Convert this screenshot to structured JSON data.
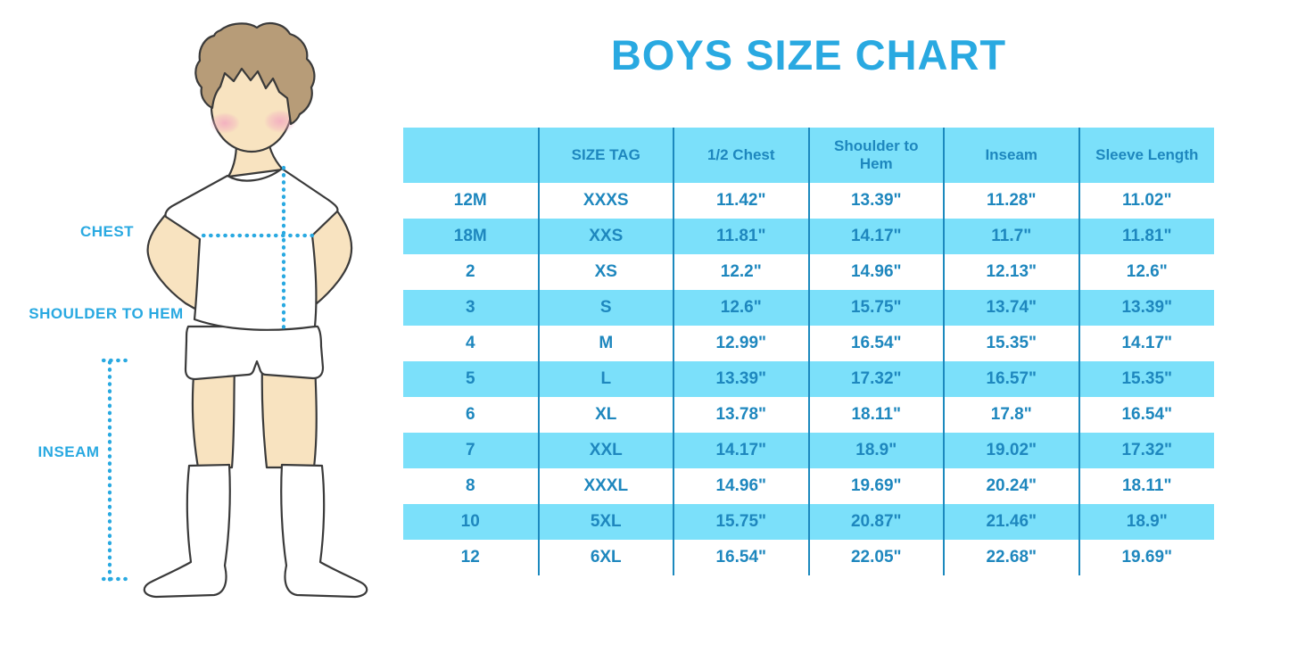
{
  "page": {
    "background": "#FFFFFF"
  },
  "colors": {
    "accent_blue": "#29A9E1",
    "stripe_blue": "#7BE0FA",
    "table_text_blue": "#1E87BE",
    "column_divider_blue": "#1C89BE"
  },
  "measurement_diagram": {
    "labels": {
      "chest": "CHEST",
      "shoulder_to_hem": "SHOULDER TO HEM",
      "inseam": "INSEAM"
    }
  },
  "chart_data": {
    "type": "table",
    "title": "BOYS SIZE CHART",
    "columns": [
      "",
      "SIZE TAG",
      "1/2 Chest",
      "Shoulder to Hem",
      "Inseam",
      "Sleeve Length"
    ],
    "rows": [
      [
        "12M",
        "XXXS",
        "11.42\"",
        "13.39\"",
        "11.28\"",
        "11.02\""
      ],
      [
        "18M",
        "XXS",
        "11.81\"",
        "14.17\"",
        "11.7\"",
        "11.81\""
      ],
      [
        "2",
        "XS",
        "12.2\"",
        "14.96\"",
        "12.13\"",
        "12.6\""
      ],
      [
        "3",
        "S",
        "12.6\"",
        "15.75\"",
        "13.74\"",
        "13.39\""
      ],
      [
        "4",
        "M",
        "12.99\"",
        "16.54\"",
        "15.35\"",
        "14.17\""
      ],
      [
        "5",
        "L",
        "13.39\"",
        "17.32\"",
        "16.57\"",
        "15.35\""
      ],
      [
        "6",
        "XL",
        "13.78\"",
        "18.11\"",
        "17.8\"",
        "16.54\""
      ],
      [
        "7",
        "XXL",
        "14.17\"",
        "18.9\"",
        "19.02\"",
        "17.32\""
      ],
      [
        "8",
        "XXXL",
        "14.96\"",
        "19.69\"",
        "20.24\"",
        "18.11\""
      ],
      [
        "10",
        "5XL",
        "15.75\"",
        "20.87\"",
        "21.46\"",
        "18.9\""
      ],
      [
        "12",
        "6XL",
        "16.54\"",
        "22.05\"",
        "22.68\"",
        "19.69\""
      ]
    ],
    "row_striping": "alternating white and light blue, first data row white",
    "grid": "vertical column dividers only, no horizontal borders",
    "header_background": "#7BE0FA"
  }
}
